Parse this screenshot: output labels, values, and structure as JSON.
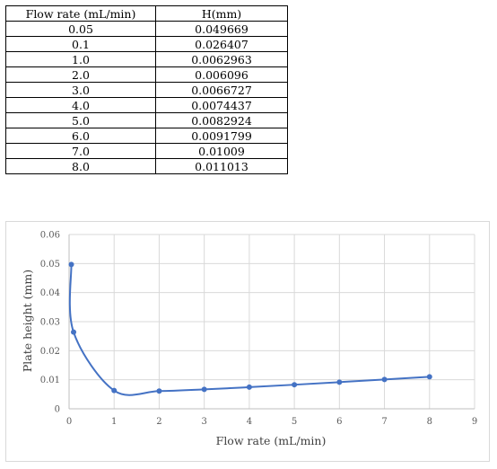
{
  "table": {
    "headers": [
      "Flow rate (mL/min)",
      "H(mm)"
    ],
    "rows": [
      [
        "0.05",
        "0.049669"
      ],
      [
        "0.1",
        "0.026407"
      ],
      [
        "1.0",
        "0.0062963"
      ],
      [
        "2.0",
        "0.006096"
      ],
      [
        "3.0",
        "0.0066727"
      ],
      [
        "4.0",
        "0.0074437"
      ],
      [
        "5.0",
        "0.0082924"
      ],
      [
        "6.0",
        "0.0091799"
      ],
      [
        "7.0",
        "0.01009"
      ],
      [
        "8.0",
        "0.011013"
      ]
    ]
  },
  "chart_data": {
    "type": "scatter",
    "title": "",
    "xlabel": "Flow rate (mL/min)",
    "ylabel": "Plate height (mm)",
    "xlim": [
      0,
      9
    ],
    "ylim": [
      0,
      0.06
    ],
    "xticks": [
      "0",
      "1",
      "2",
      "3",
      "4",
      "5",
      "6",
      "7",
      "8",
      "9"
    ],
    "yticks": [
      "0",
      "0.01",
      "0.02",
      "0.03",
      "0.04",
      "0.05",
      "0.06"
    ],
    "grid": true,
    "smooth_line": true,
    "colors": {
      "series": "#4472c4",
      "grid": "#d9d9d9",
      "axis": "#bfbfbf"
    },
    "series": [
      {
        "x": [
          0.05,
          0.1,
          1.0,
          2.0,
          3.0,
          4.0,
          5.0,
          6.0,
          7.0,
          8.0
        ],
        "y": [
          0.049669,
          0.026407,
          0.0062963,
          0.006096,
          0.0066727,
          0.0074437,
          0.0082924,
          0.0091799,
          0.01009,
          0.011013
        ]
      }
    ]
  }
}
